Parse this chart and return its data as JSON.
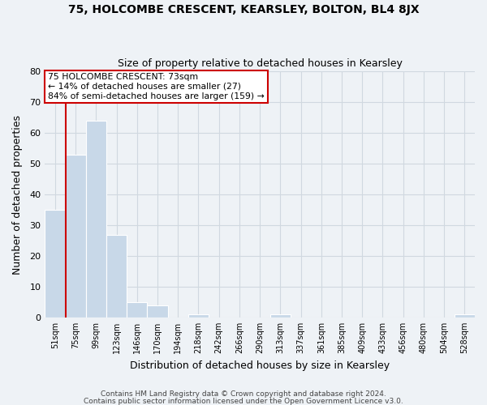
{
  "title1": "75, HOLCOMBE CRESCENT, KEARSLEY, BOLTON, BL4 8JX",
  "title2": "Size of property relative to detached houses in Kearsley",
  "xlabel": "Distribution of detached houses by size in Kearsley",
  "ylabel": "Number of detached properties",
  "footer1": "Contains HM Land Registry data © Crown copyright and database right 2024.",
  "footer2": "Contains public sector information licensed under the Open Government Licence v3.0.",
  "bin_labels": [
    "51sqm",
    "75sqm",
    "99sqm",
    "123sqm",
    "146sqm",
    "170sqm",
    "194sqm",
    "218sqm",
    "242sqm",
    "266sqm",
    "290sqm",
    "313sqm",
    "337sqm",
    "361sqm",
    "385sqm",
    "409sqm",
    "433sqm",
    "456sqm",
    "480sqm",
    "504sqm",
    "528sqm"
  ],
  "bar_heights": [
    35,
    53,
    64,
    27,
    5,
    4,
    0,
    1,
    0,
    0,
    0,
    1,
    0,
    0,
    0,
    0,
    0,
    0,
    0,
    0,
    1
  ],
  "bar_color": "#c8d8e8",
  "subject_line_color": "#cc0000",
  "annotation_text": "75 HOLCOMBE CRESCENT: 73sqm\n← 14% of detached houses are smaller (27)\n84% of semi-detached houses are larger (159) →",
  "annotation_box_color": "#ffffff",
  "annotation_box_edge_color": "#cc0000",
  "ylim": [
    0,
    80
  ],
  "yticks": [
    0,
    10,
    20,
    30,
    40,
    50,
    60,
    70,
    80
  ],
  "grid_color": "#d0d8e0",
  "bg_color": "#eef2f6"
}
